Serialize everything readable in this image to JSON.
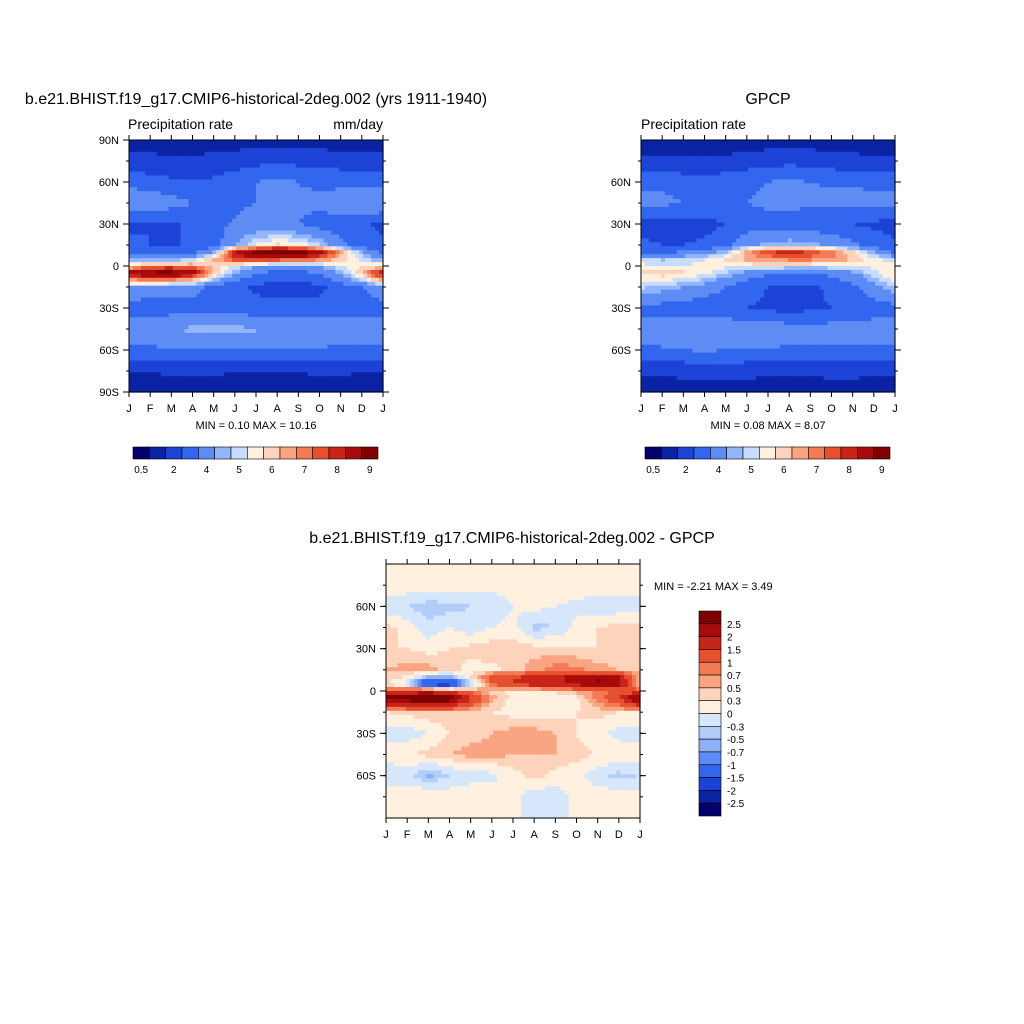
{
  "chart_data": [
    {
      "type": "heatmap",
      "title": "b.e21.BHIST.f19_g17.CMIP6-historical-2deg.002 (yrs 1911-1940)",
      "left_label": "Precipitation rate",
      "right_label": "mm/day",
      "x_ticks": [
        "J",
        "F",
        "M",
        "A",
        "M",
        "J",
        "J",
        "A",
        "S",
        "O",
        "N",
        "D",
        "J"
      ],
      "y_ticks": [
        "90N",
        "60N",
        "30N",
        "0",
        "30S",
        "60S",
        "90S"
      ],
      "ylim": [
        -90,
        90
      ],
      "stats": "MIN =   0.10 MAX =  10.16",
      "min": 0.1,
      "max": 10.16,
      "colorbar_labels": [
        "0.5",
        "2",
        "4",
        "5",
        "6",
        "7",
        "8",
        "9"
      ],
      "colorbar_colors": [
        "#02006b",
        "#0a22a4",
        "#1c43d6",
        "#3366ee",
        "#5e8cf5",
        "#93b5fb",
        "#c9dcfd",
        "#fff0e0",
        "#fdd3bb",
        "#f9a582",
        "#f37a55",
        "#e6502e",
        "#c9241a",
        "#a80b0b",
        "#7f0000"
      ],
      "field": {
        "months": [
          0,
          1,
          2,
          3,
          4,
          5,
          6,
          7,
          8,
          9,
          10,
          11,
          12
        ],
        "lats": [
          -90,
          -75,
          -60,
          -45,
          -30,
          -15,
          -5,
          0,
          5,
          10,
          15,
          30,
          45,
          60,
          75,
          90
        ],
        "values": [
          [
            0.5,
            0.5,
            0.5,
            0.5,
            0.5,
            0.5,
            0.5,
            0.5,
            0.5,
            0.5,
            0.5,
            0.5,
            0.5
          ],
          [
            1.0,
            1.0,
            1.2,
            1.2,
            1.2,
            1.0,
            1.0,
            1.0,
            1.0,
            1.2,
            1.2,
            1.0,
            1.0
          ],
          [
            2.8,
            2.8,
            2.9,
            3.0,
            3.0,
            3.0,
            3.0,
            3.0,
            2.9,
            2.9,
            2.8,
            2.8,
            2.8
          ],
          [
            3.6,
            3.8,
            4.0,
            4.2,
            4.3,
            4.2,
            4.1,
            4.0,
            3.9,
            3.8,
            3.7,
            3.6,
            3.6
          ],
          [
            2.4,
            2.4,
            2.5,
            2.6,
            2.5,
            2.4,
            2.4,
            2.3,
            2.3,
            2.3,
            2.4,
            2.4,
            2.4
          ],
          [
            4.0,
            3.8,
            3.6,
            3.4,
            2.8,
            2.2,
            1.8,
            1.6,
            1.6,
            1.8,
            2.4,
            3.0,
            4.0
          ],
          [
            8.6,
            9.4,
            9.5,
            8.6,
            6.0,
            4.0,
            3.0,
            2.6,
            2.6,
            3.0,
            4.2,
            6.0,
            8.6
          ],
          [
            5.5,
            6.6,
            6.8,
            6.6,
            5.8,
            5.0,
            4.2,
            3.8,
            3.8,
            4.2,
            5.0,
            5.4,
            5.5
          ],
          [
            3.8,
            3.6,
            3.8,
            4.5,
            6.0,
            7.5,
            7.8,
            7.6,
            7.4,
            6.8,
            5.8,
            4.8,
            3.8
          ],
          [
            2.6,
            2.4,
            2.4,
            2.6,
            4.0,
            8.0,
            9.2,
            10.0,
            9.6,
            8.4,
            6.4,
            4.0,
            2.6
          ],
          [
            2.2,
            2.0,
            2.0,
            2.0,
            2.4,
            4.0,
            5.0,
            5.6,
            5.4,
            4.6,
            3.2,
            2.4,
            2.2
          ],
          [
            1.8,
            2.0,
            1.8,
            2.2,
            2.8,
            3.1,
            3.4,
            3.3,
            3.0,
            2.6,
            2.4,
            2.1,
            1.8
          ],
          [
            4.0,
            3.8,
            3.4,
            3.0,
            2.8,
            2.8,
            3.0,
            3.0,
            3.1,
            3.3,
            3.6,
            4.0,
            4.0
          ],
          [
            2.6,
            2.4,
            2.2,
            2.1,
            2.2,
            2.6,
            3.0,
            3.2,
            3.0,
            2.8,
            2.7,
            2.6,
            2.6
          ],
          [
            1.4,
            1.3,
            1.2,
            1.2,
            1.3,
            1.5,
            1.7,
            1.8,
            1.7,
            1.6,
            1.5,
            1.4,
            1.4
          ],
          [
            0.5,
            0.5,
            0.5,
            0.5,
            0.5,
            0.5,
            0.5,
            0.5,
            0.5,
            0.5,
            0.5,
            0.5,
            0.5
          ]
        ]
      }
    },
    {
      "type": "heatmap",
      "title": "GPCP",
      "left_label": "Precipitation rate",
      "right_label": "",
      "x_ticks": [
        "J",
        "F",
        "M",
        "A",
        "M",
        "J",
        "J",
        "A",
        "S",
        "O",
        "N",
        "D",
        "J"
      ],
      "y_ticks": [
        "60N",
        "30N",
        "0",
        "30S",
        "60S"
      ],
      "ylim": [
        -90,
        90
      ],
      "stats": "MIN =   0.08 MAX =   8.07",
      "min": 0.08,
      "max": 8.07,
      "colorbar_labels": [
        "0.5",
        "2",
        "4",
        "5",
        "6",
        "7",
        "8",
        "9"
      ],
      "colorbar_colors": [
        "#02006b",
        "#0a22a4",
        "#1c43d6",
        "#3366ee",
        "#5e8cf5",
        "#93b5fb",
        "#c9dcfd",
        "#fff0e0",
        "#fdd3bb",
        "#f9a582",
        "#f37a55",
        "#e6502e",
        "#c9241a",
        "#a80b0b",
        "#7f0000"
      ],
      "field": {
        "months": [
          0,
          1,
          2,
          3,
          4,
          5,
          6,
          7,
          8,
          9,
          10,
          11,
          12
        ],
        "lats": [
          -90,
          -75,
          -60,
          -45,
          -30,
          -15,
          -5,
          0,
          5,
          10,
          15,
          30,
          45,
          60,
          75,
          90
        ],
        "values": [
          [
            0.5,
            0.5,
            0.5,
            0.5,
            0.5,
            0.5,
            0.5,
            0.5,
            0.5,
            0.5,
            0.5,
            0.5,
            0.5
          ],
          [
            1.2,
            1.2,
            1.3,
            1.4,
            1.4,
            1.3,
            1.2,
            1.2,
            1.2,
            1.3,
            1.3,
            1.2,
            1.2
          ],
          [
            2.8,
            2.9,
            3.0,
            3.1,
            3.0,
            3.0,
            2.9,
            2.9,
            2.9,
            2.8,
            2.8,
            2.8,
            2.8
          ],
          [
            3.5,
            3.6,
            3.7,
            3.8,
            3.8,
            3.7,
            3.6,
            3.5,
            3.4,
            3.4,
            3.4,
            3.5,
            3.5
          ],
          [
            2.6,
            2.6,
            2.5,
            2.4,
            2.2,
            2.0,
            1.8,
            1.6,
            1.8,
            2.0,
            2.3,
            2.5,
            2.6
          ],
          [
            4.6,
            4.4,
            4.0,
            3.6,
            3.0,
            2.4,
            2.0,
            1.8,
            1.8,
            2.2,
            2.8,
            3.6,
            4.6
          ],
          [
            5.6,
            5.8,
            5.6,
            5.2,
            4.5,
            3.6,
            3.2,
            3.0,
            3.0,
            3.3,
            3.8,
            4.8,
            5.6
          ],
          [
            5.2,
            5.0,
            5.0,
            5.2,
            5.2,
            5.2,
            5.2,
            5.0,
            5.0,
            5.0,
            5.0,
            5.2,
            5.2
          ],
          [
            4.6,
            4.4,
            4.6,
            5.0,
            5.6,
            6.2,
            6.6,
            6.8,
            6.8,
            6.6,
            6.0,
            5.2,
            4.6
          ],
          [
            2.8,
            2.8,
            3.0,
            3.4,
            4.4,
            6.2,
            7.4,
            7.8,
            7.4,
            6.6,
            5.6,
            4.0,
            2.8
          ],
          [
            2.2,
            2.0,
            2.0,
            2.2,
            2.8,
            3.8,
            4.2,
            4.4,
            4.2,
            3.8,
            3.2,
            2.6,
            2.2
          ],
          [
            1.6,
            1.6,
            1.5,
            1.6,
            2.0,
            2.4,
            2.6,
            2.6,
            2.4,
            2.2,
            2.0,
            1.8,
            1.6
          ],
          [
            3.2,
            3.2,
            3.0,
            2.8,
            2.8,
            3.0,
            3.2,
            3.2,
            3.2,
            3.2,
            3.3,
            3.3,
            3.2
          ],
          [
            2.8,
            2.8,
            2.6,
            2.5,
            2.6,
            2.8,
            3.0,
            3.2,
            3.0,
            2.9,
            2.9,
            2.8,
            2.8
          ],
          [
            1.2,
            1.2,
            1.1,
            1.1,
            1.2,
            1.4,
            1.6,
            1.7,
            1.6,
            1.4,
            1.3,
            1.2,
            1.2
          ],
          [
            0.5,
            0.5,
            0.5,
            0.5,
            0.5,
            0.5,
            0.5,
            0.5,
            0.5,
            0.5,
            0.5,
            0.5,
            0.5
          ]
        ]
      }
    },
    {
      "type": "heatmap",
      "title": "b.e21.BHIST.f19_g17.CMIP6-historical-2deg.002 - GPCP",
      "x_ticks": [
        "J",
        "F",
        "M",
        "A",
        "M",
        "J",
        "J",
        "A",
        "S",
        "O",
        "N",
        "D",
        "J"
      ],
      "y_ticks": [
        "60N",
        "30N",
        "0",
        "30S",
        "60S"
      ],
      "ylim": [
        -90,
        90
      ],
      "stats": "MIN =  -2.21 MAX =   3.49",
      "min": -2.21,
      "max": 3.49,
      "colorbar_labels": [
        "2.5",
        "2",
        "1.5",
        "1",
        "0.7",
        "0.5",
        "0.3",
        "0",
        "-0.3",
        "-0.5",
        "-0.7",
        "-1",
        "-1.5",
        "-2",
        "-2.5"
      ],
      "colorbar_colors": [
        "#7f0000",
        "#a80b0b",
        "#c9241a",
        "#e6502e",
        "#f37a55",
        "#f9a582",
        "#fdd3bb",
        "#fff0e0",
        "#d6e6fb",
        "#b3cdf9",
        "#8fb0f5",
        "#5e8cf5",
        "#3366ee",
        "#1c43d6",
        "#0a22a4",
        "#02006b"
      ],
      "field": {
        "months": [
          0,
          1,
          2,
          3,
          4,
          5,
          6,
          7,
          8,
          9,
          10,
          11,
          12
        ],
        "lats": [
          -90,
          -75,
          -60,
          -45,
          -30,
          -15,
          -5,
          0,
          5,
          10,
          15,
          30,
          45,
          60,
          75,
          90
        ],
        "values": [
          [
            0.0,
            0.0,
            0.0,
            0.0,
            0.0,
            0.0,
            0.0,
            0.0,
            0.0,
            0.0,
            0.0,
            0.0,
            0.0
          ],
          [
            0.2,
            0.3,
            0.3,
            0.2,
            0.3,
            0.2,
            0.1,
            -0.2,
            -0.2,
            0.1,
            0.2,
            0.2,
            0.2
          ],
          [
            -0.3,
            -0.2,
            -0.6,
            -0.3,
            -0.2,
            -0.1,
            0.2,
            0.4,
            0.2,
            0.1,
            -0.2,
            -0.4,
            -0.3
          ],
          [
            0.2,
            0.3,
            0.4,
            0.5,
            0.6,
            0.6,
            0.5,
            0.5,
            0.5,
            0.4,
            0.3,
            0.2,
            0.2
          ],
          [
            -0.2,
            -0.2,
            0.0,
            0.3,
            0.4,
            0.5,
            0.6,
            0.6,
            0.5,
            0.3,
            0.1,
            -0.1,
            -0.2
          ],
          [
            0.3,
            0.4,
            0.5,
            0.5,
            0.4,
            0.3,
            0.2,
            0.2,
            0.2,
            0.3,
            0.4,
            0.3,
            0.3
          ],
          [
            2.8,
            3.0,
            3.4,
            3.0,
            1.6,
            0.6,
            0.2,
            0.0,
            0.0,
            0.2,
            0.8,
            1.6,
            2.8
          ],
          [
            1.2,
            1.4,
            1.6,
            1.2,
            0.8,
            0.4,
            0.2,
            0.2,
            0.4,
            0.6,
            0.8,
            1.0,
            1.2
          ],
          [
            0.3,
            -0.3,
            -2.0,
            -2.1,
            -0.4,
            1.0,
            1.6,
            1.8,
            1.8,
            2.2,
            2.6,
            2.4,
            0.3
          ],
          [
            0.4,
            0.3,
            -0.6,
            -0.6,
            0.3,
            1.2,
            1.4,
            1.6,
            1.8,
            2.2,
            2.4,
            2.0,
            0.4
          ],
          [
            0.5,
            0.6,
            0.6,
            0.4,
            0.2,
            0.2,
            0.4,
            0.6,
            0.8,
            0.8,
            0.6,
            0.5,
            0.5
          ],
          [
            0.3,
            0.3,
            0.2,
            0.3,
            0.4,
            0.5,
            0.5,
            0.4,
            0.4,
            0.3,
            0.3,
            0.3,
            0.3
          ],
          [
            0.4,
            0.2,
            -0.2,
            0.0,
            -0.2,
            0.0,
            0.1,
            -0.4,
            -0.3,
            0.1,
            0.3,
            0.4,
            0.4
          ],
          [
            -0.2,
            -0.3,
            -0.5,
            -0.4,
            -0.3,
            -0.2,
            0.0,
            0.1,
            0.0,
            -0.1,
            -0.2,
            -0.2,
            -0.2
          ],
          [
            0.2,
            0.2,
            0.3,
            0.2,
            0.1,
            0.1,
            0.1,
            0.2,
            0.2,
            0.2,
            0.2,
            0.2,
            0.2
          ],
          [
            0.0,
            0.0,
            0.0,
            0.0,
            0.0,
            0.0,
            0.0,
            0.0,
            0.0,
            0.0,
            0.0,
            0.0,
            0.0
          ]
        ]
      }
    }
  ]
}
